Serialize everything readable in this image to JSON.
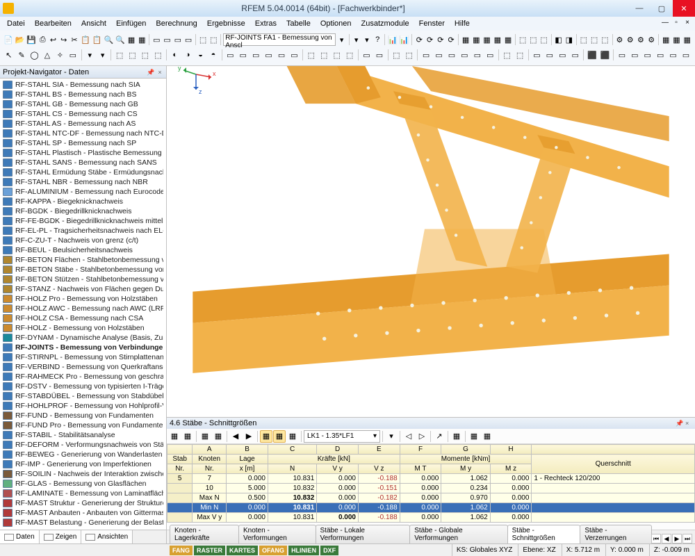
{
  "window": {
    "title": "RFEM 5.04.0014 (64bit) - [Fachwerkbinder*]",
    "close": "✕",
    "max": "▢",
    "min": "—"
  },
  "menu": {
    "items": [
      "Datei",
      "Bearbeiten",
      "Ansicht",
      "Einfügen",
      "Berechnung",
      "Ergebnisse",
      "Extras",
      "Tabelle",
      "Optionen",
      "Zusatzmodule",
      "Fenster",
      "Hilfe"
    ]
  },
  "toolbar": {
    "combo1": "RF-JOINTS FA1 - Bemessung von Anscl"
  },
  "navigator": {
    "title": "Projekt-Navigator - Daten",
    "items": [
      {
        "c": "#3e7ab8",
        "t": "RF-STAHL SIA - Bemessung nach SIA"
      },
      {
        "c": "#3e7ab8",
        "t": "RF-STAHL BS - Bemessung nach BS"
      },
      {
        "c": "#3e7ab8",
        "t": "RF-STAHL GB - Bemessung nach GB"
      },
      {
        "c": "#3e7ab8",
        "t": "RF-STAHL CS - Bemessung nach CS"
      },
      {
        "c": "#3e7ab8",
        "t": "RF-STAHL AS - Bemessung nach AS"
      },
      {
        "c": "#3e7ab8",
        "t": "RF-STAHL NTC-DF - Bemessung nach NTC-DF"
      },
      {
        "c": "#3e7ab8",
        "t": "RF-STAHL SP - Bemessung nach SP"
      },
      {
        "c": "#3e7ab8",
        "t": "RF-STAHL Plastisch - Plastische Bemessung nac"
      },
      {
        "c": "#3e7ab8",
        "t": "RF-STAHL SANS - Bemessung nach SANS"
      },
      {
        "c": "#3e7ab8",
        "t": "RF-STAHL Ermüdung Stäbe - Ermüdungsnachw"
      },
      {
        "c": "#3e7ab8",
        "t": "RF-STAHL NBR - Bemessung nach NBR"
      },
      {
        "c": "#6aa0d8",
        "t": "RF-ALUMINIUM - Bemessung nach Eurocode 9"
      },
      {
        "c": "#3e7ab8",
        "t": "RF-KAPPA - Biegeknicknachweis"
      },
      {
        "c": "#3e7ab8",
        "t": "RF-BGDK - Biegedrillknicknachweis"
      },
      {
        "c": "#3e7ab8",
        "t": "RF-FE-BGDK - Biegedrillknicknachweis mittels FE"
      },
      {
        "c": "#3e7ab8",
        "t": "RF-EL-PL - Tragsicherheitsnachweis nach EL-PL"
      },
      {
        "c": "#3e7ab8",
        "t": "RF-C-ZU-T - Nachweis von grenz (c/t)"
      },
      {
        "c": "#3e7ab8",
        "t": "RF-BEUL - Beulsicherheitsnachweis"
      },
      {
        "c": "#b0862e",
        "t": "RF-BETON Flächen - Stahlbetonbemessung von"
      },
      {
        "c": "#b0862e",
        "t": "RF-BETON Stäbe - Stahlbetonbemessung von St"
      },
      {
        "c": "#b0862e",
        "t": "RF-BETON Stützen - Stahlbetonbemessung von"
      },
      {
        "c": "#b0862e",
        "t": "RF-STANZ - Nachweis von Flächen gegen Durch"
      },
      {
        "c": "#cc8a2e",
        "t": "RF-HOLZ Pro - Bemessung von Holzstäben"
      },
      {
        "c": "#cc8a2e",
        "t": "RF-HOLZ AWC - Bemessung nach AWC (LRFD o"
      },
      {
        "c": "#cc8a2e",
        "t": "RF-HOLZ CSA - Bemessung nach CSA"
      },
      {
        "c": "#cc8a2e",
        "t": "RF-HOLZ - Bemessung von Holzstäben"
      },
      {
        "c": "#1a8a9a",
        "t": "RF-DYNAM - Dynamische Analyse (Basis, Zusatz"
      },
      {
        "c": "#3e7ab8",
        "t": "RF-JOINTS - Bemessung von Verbindungen",
        "b": true
      },
      {
        "c": "#3e7ab8",
        "t": "RF-STIRNPL - Bemessung von Stirnplattenansch"
      },
      {
        "c": "#3e7ab8",
        "t": "RF-VERBIND - Bemessung von Querkraftanschlü"
      },
      {
        "c": "#3e7ab8",
        "t": "RF-RAHMECK Pro - Bemessung von geschraubt"
      },
      {
        "c": "#3e7ab8",
        "t": "RF-DSTV - Bemessung von typisierten I-Trägera"
      },
      {
        "c": "#3e7ab8",
        "t": "RF-STABDÜBEL - Bemessung von Stabdübelverb"
      },
      {
        "c": "#3e7ab8",
        "t": "RF-HOHLPROF - Bemessung von Hohlprofil-Ver"
      },
      {
        "c": "#7a5a3a",
        "t": "RF-FUND - Bemessung von Fundamenten"
      },
      {
        "c": "#7a5a3a",
        "t": "RF-FUND Pro - Bemessung von Fundamenten"
      },
      {
        "c": "#3e7ab8",
        "t": "RF-STABIL - Stabilitätsanalyse"
      },
      {
        "c": "#3e7ab8",
        "t": "RF-DEFORM - Verformungsnachweis von Stäber"
      },
      {
        "c": "#3e7ab8",
        "t": "RF-BEWEG - Generierung von Wanderlasten auf"
      },
      {
        "c": "#3e7ab8",
        "t": "RF-IMP - Generierung von Imperfektionen"
      },
      {
        "c": "#7a5a3a",
        "t": "RF-SOILIN - Nachweis der Interaktion zwischen"
      },
      {
        "c": "#60b080",
        "t": "RF-GLAS - Bemessung von Glasflächen"
      },
      {
        "c": "#b05050",
        "t": "RF-LAMINATE - Bemessung von Laminatflächen"
      },
      {
        "c": "#b03a3a",
        "t": "RF-MAST Struktur - Generierung der Strukturen"
      },
      {
        "c": "#b03a3a",
        "t": "RF-MAST Anbauten - Anbauten von Gittermaste"
      },
      {
        "c": "#b03a3a",
        "t": "RF-MAST Belastung - Generierung der Belastun"
      }
    ],
    "tabs": [
      "Daten",
      "Zeigen",
      "Ansichten"
    ]
  },
  "viewport": {
    "bg": "#ffffff",
    "beam_light": "#f2b24a",
    "beam_mid": "#e69c2e",
    "beam_dark": "#c97d1e",
    "bolt": "#f5f2e0",
    "axis": {
      "x": "x",
      "y": "y",
      "z": "z",
      "xc": "#d83030",
      "yc": "#2aa040",
      "zc": "#2a60c0"
    }
  },
  "panel": {
    "title": "4.6 Stäbe - Schnittgrößen",
    "combo": "LK1 - 1.35*LF1",
    "col_letters": [
      "A",
      "B",
      "C",
      "D",
      "E",
      "F",
      "G",
      "H"
    ],
    "header1": {
      "stab": "Stab",
      "knoten": "Knoten",
      "lage": "Lage",
      "krafte": "Kräfte [kN]",
      "momente": "Momente [kNm]",
      "quer": "Querschnitt"
    },
    "header2": {
      "nr": "Nr.",
      "knr": "Nr.",
      "x": "x [m]",
      "N": "N",
      "Vy": "V y",
      "Vz": "V z",
      "MT": "M T",
      "My": "M y",
      "Mz": "M z"
    },
    "rows": [
      {
        "r": "5",
        "a": "7",
        "b": "0.000",
        "c": "10.831",
        "d": "0.000",
        "e": "-0.188",
        "f": "0.000",
        "g": "1.062",
        "h": "0.000",
        "q": "1 - Rechteck 120/200",
        "en": true
      },
      {
        "r": "",
        "a": "10",
        "b": "5.000",
        "c": "10.832",
        "d": "0.000",
        "e": "-0.151",
        "f": "0.000",
        "g": "0.234",
        "h": "0.000",
        "q": "",
        "en": true
      },
      {
        "r": "",
        "a": "Max N",
        "b": "0.500",
        "c": "10.832",
        "cB": true,
        "d": "0.000",
        "e": "-0.182",
        "f": "0.000",
        "g": "0.970",
        "h": "0.000",
        "q": "",
        "en": true
      },
      {
        "r": "",
        "a": "Min N",
        "b": "0.000",
        "c": "10.831",
        "cB": true,
        "d": "0.000",
        "e": "-0.188",
        "f": "0.000",
        "g": "1.062",
        "h": "0.000",
        "q": "",
        "sel": true,
        "en": true
      },
      {
        "r": "",
        "a": "Max V y",
        "b": "0.000",
        "c": "10.831",
        "d": "0.000",
        "dB": true,
        "e": "-0.188",
        "f": "0.000",
        "g": "1.062",
        "h": "0.000",
        "q": "",
        "en": true
      }
    ],
    "tabs": [
      "Knoten - Lagerkräfte",
      "Knoten - Verformungen",
      "Stäbe - Lokale Verformungen",
      "Stäbe - Globale Verformungen",
      "Stäbe - Schnittgrößen",
      "Stäbe - Verzerrungen"
    ],
    "active_tab": 4
  },
  "status": {
    "toggles": [
      {
        "t": "FANG",
        "c": "#d8a030"
      },
      {
        "t": "RASTER",
        "c": "#3a7a3a"
      },
      {
        "t": "KARTES",
        "c": "#3a7a3a"
      },
      {
        "t": "OFANG",
        "c": "#d8a030"
      },
      {
        "t": "HLINIEN",
        "c": "#3a7a3a"
      },
      {
        "t": "DXF",
        "c": "#3a7a3a"
      }
    ],
    "ks": "KS: Globales XYZ",
    "ebene": "Ebene: XZ",
    "x": "X: 5.712 m",
    "y": "Y: 0.000 m",
    "z": "Z: -0.009 m"
  }
}
